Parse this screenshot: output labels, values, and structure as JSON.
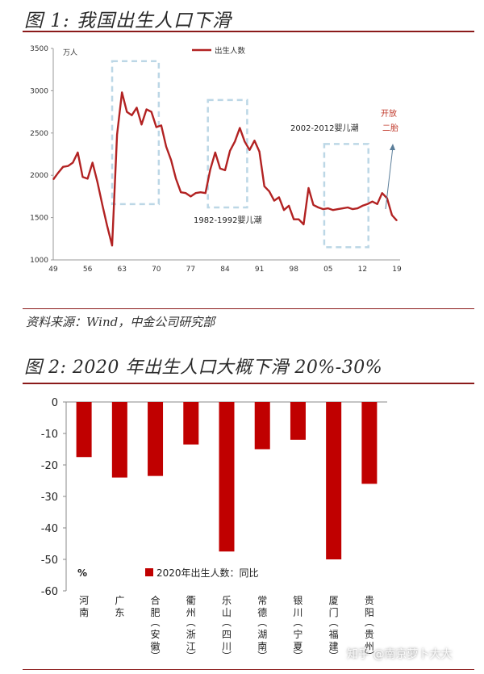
{
  "chart_data": [
    {
      "type": "line",
      "title": "图 1: 我国出生人口下滑",
      "ylabel": "万人",
      "legend": "出生人数",
      "ylim": [
        1000,
        3500
      ],
      "yticks": [
        1000,
        1500,
        2000,
        2500,
        3000,
        3500
      ],
      "xticks": [
        "49",
        "56",
        "63",
        "70",
        "77",
        "84",
        "91",
        "98",
        "05",
        "12",
        "19"
      ],
      "x": [
        1949,
        1950,
        1951,
        1952,
        1953,
        1954,
        1955,
        1956,
        1957,
        1958,
        1959,
        1960,
        1961,
        1962,
        1963,
        1964,
        1965,
        1966,
        1967,
        1968,
        1969,
        1970,
        1971,
        1972,
        1973,
        1974,
        1975,
        1976,
        1977,
        1978,
        1979,
        1980,
        1981,
        1982,
        1983,
        1984,
        1985,
        1986,
        1987,
        1988,
        1989,
        1990,
        1991,
        1992,
        1993,
        1994,
        1995,
        1996,
        1997,
        1998,
        1999,
        2000,
        2001,
        2002,
        2003,
        2004,
        2005,
        2006,
        2007,
        2008,
        2009,
        2010,
        2011,
        2012,
        2013,
        2014,
        2015,
        2016,
        2017,
        2018,
        2019
      ],
      "values": [
        1950,
        2030,
        2100,
        2110,
        2150,
        2270,
        1980,
        1960,
        2150,
        1920,
        1650,
        1400,
        1170,
        2480,
        2980,
        2750,
        2710,
        2800,
        2600,
        2780,
        2750,
        2570,
        2590,
        2340,
        2180,
        1960,
        1800,
        1790,
        1750,
        1790,
        1800,
        1790,
        2070,
        2270,
        2080,
        2060,
        2290,
        2400,
        2560,
        2400,
        2300,
        2410,
        2280,
        1870,
        1810,
        1700,
        1740,
        1590,
        1640,
        1480,
        1480,
        1420,
        1850,
        1650,
        1620,
        1600,
        1610,
        1590,
        1600,
        1610,
        1620,
        1600,
        1610,
        1640,
        1660,
        1690,
        1660,
        1790,
        1730,
        1530,
        1465
      ],
      "annotations": [
        {
          "text": "1982-1992婴儿潮"
        },
        {
          "text": "2002-2012婴儿潮"
        },
        {
          "text": "开放"
        },
        {
          "text": "二胎"
        }
      ],
      "source": "资料来源：Wind，中金公司研究部"
    },
    {
      "type": "bar",
      "title": "图 2: 2020 年出生人口大概下滑 20%-30%",
      "ylabel": "%",
      "legend": "2020年出生人数：同比",
      "ylim": [
        -60,
        0
      ],
      "yticks": [
        0,
        -10,
        -20,
        -30,
        -40,
        -50,
        -60
      ],
      "categories": [
        "河南",
        "广东",
        "合肥（安徽）",
        "衢州（浙江）",
        "乐山（四川）",
        "常德（湖南）",
        "银川（宁夏）",
        "厦门（福建）",
        "贵阳（贵州）"
      ],
      "values": [
        -17.5,
        -24,
        -23.5,
        -13.5,
        -47.5,
        -15,
        -12,
        -50,
        -26
      ]
    }
  ],
  "watermark": "知乎 @南京萝卜大大",
  "colors": {
    "line": "#b22222",
    "bar": "#c00000",
    "dashbox": "#bcd7e6",
    "rule": "#8b1a1a"
  }
}
